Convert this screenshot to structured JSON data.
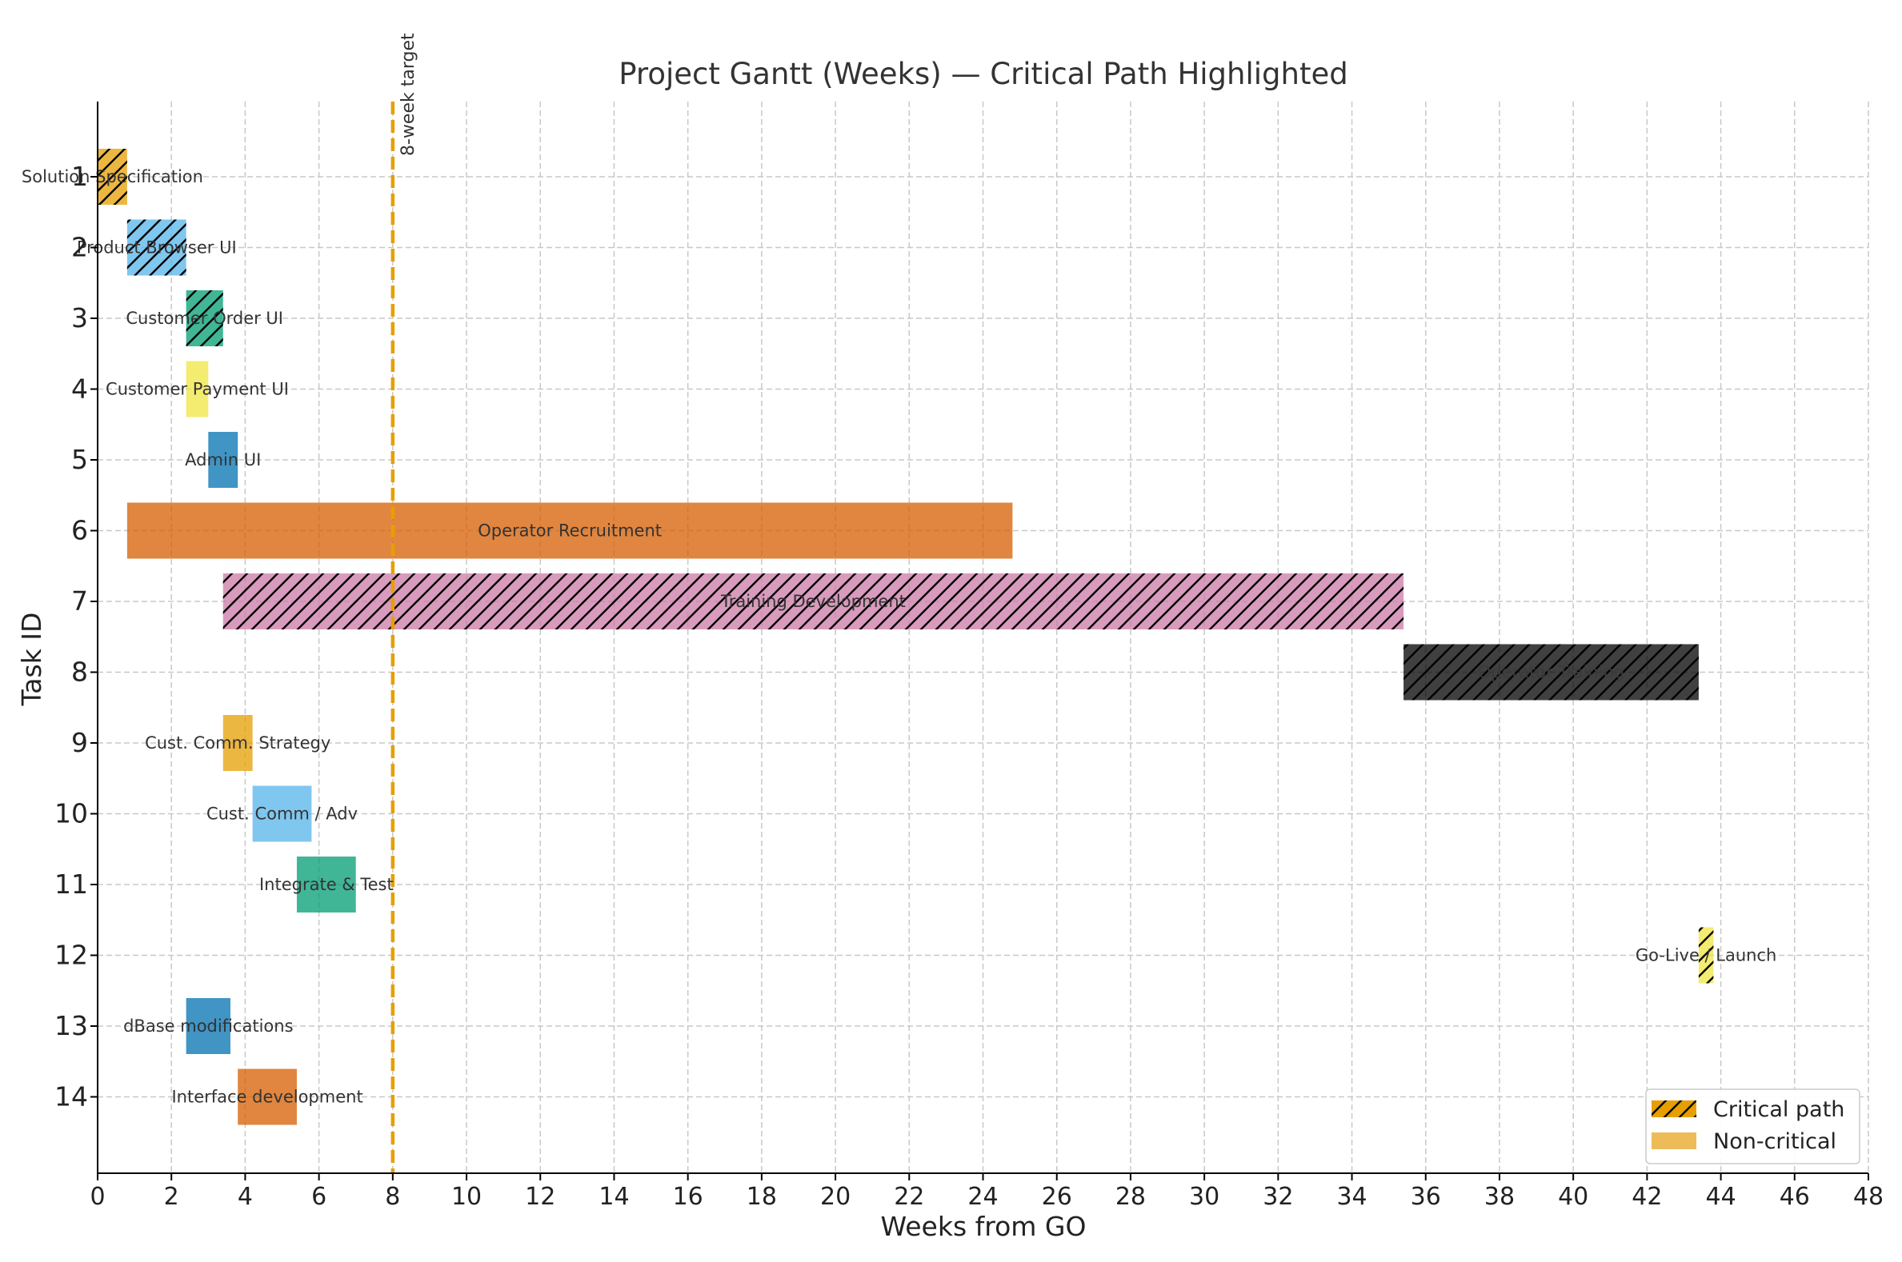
{
  "chart_data": {
    "type": "gantt",
    "title": "Project Gantt (Weeks) — Critical Path Highlighted",
    "xlabel": "Weeks from GO",
    "ylabel": "Task ID",
    "xlim": [
      0,
      48
    ],
    "x_ticks": [
      0,
      2,
      4,
      6,
      8,
      10,
      12,
      14,
      16,
      18,
      20,
      22,
      24,
      26,
      28,
      30,
      32,
      34,
      36,
      38,
      40,
      42,
      44,
      46,
      48
    ],
    "grid": true,
    "legend_position": "bottom-right",
    "target_line": {
      "x": 8,
      "label": "8-week target",
      "color": "#e69f00"
    },
    "legend": [
      {
        "label": "Critical path",
        "color": "#e69f00",
        "hatched": true
      },
      {
        "label": "Non-critical",
        "color": "#ecb84f",
        "hatched": false
      }
    ],
    "tasks": [
      {
        "id": 1,
        "name": "Solution Specification",
        "start": 0,
        "end": 0.8,
        "color": "#e69f00",
        "critical": true,
        "label_color": "#333333"
      },
      {
        "id": 2,
        "name": "Product Browser UI",
        "start": 0.8,
        "end": 2.4,
        "color": "#56b4e9",
        "critical": true,
        "label_color": "#333333"
      },
      {
        "id": 3,
        "name": "Customer Order UI",
        "start": 2.4,
        "end": 3.4,
        "color": "#009e73",
        "critical": true,
        "label_color": "#333333"
      },
      {
        "id": 4,
        "name": "Customer Payment UI",
        "start": 2.4,
        "end": 3.0,
        "color": "#f0e442",
        "critical": false,
        "label_color": "#333333"
      },
      {
        "id": 5,
        "name": "Admin UI",
        "start": 3.0,
        "end": 3.8,
        "color": "#0072b2",
        "critical": false,
        "label_color": "#333333"
      },
      {
        "id": 6,
        "name": "Operator Recruitment",
        "start": 0.8,
        "end": 24.8,
        "color": "#d55e00",
        "critical": false,
        "label_color": "#333333"
      },
      {
        "id": 7,
        "name": "Training Development",
        "start": 3.4,
        "end": 35.4,
        "color": "#cc79a7",
        "critical": true,
        "label_color": "#333333"
      },
      {
        "id": 8,
        "name": "Operator Training",
        "start": 35.4,
        "end": 43.4,
        "color": "#000000",
        "critical": true,
        "label_color": "#3a3a3a"
      },
      {
        "id": 9,
        "name": "Cust. Comm. Strategy",
        "start": 3.4,
        "end": 4.2,
        "color": "#e69f00",
        "critical": false,
        "label_color": "#333333"
      },
      {
        "id": 10,
        "name": "Cust. Comm / Adv",
        "start": 4.2,
        "end": 5.8,
        "color": "#56b4e9",
        "critical": false,
        "label_color": "#333333"
      },
      {
        "id": 11,
        "name": "Integrate & Test",
        "start": 5.4,
        "end": 7.0,
        "color": "#009e73",
        "critical": false,
        "label_color": "#333333"
      },
      {
        "id": 12,
        "name": "Go-Live / Launch",
        "start": 43.4,
        "end": 43.8,
        "color": "#f0e442",
        "critical": true,
        "label_color": "#333333"
      },
      {
        "id": 13,
        "name": "dBase modifications",
        "start": 2.4,
        "end": 3.6,
        "color": "#0072b2",
        "critical": false,
        "label_color": "#333333"
      },
      {
        "id": 14,
        "name": "Interface development",
        "start": 3.8,
        "end": 5.4,
        "color": "#d55e00",
        "critical": false,
        "label_color": "#333333"
      }
    ]
  }
}
